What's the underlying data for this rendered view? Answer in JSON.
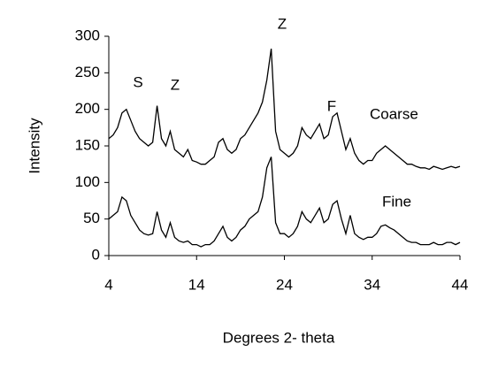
{
  "chart_data": {
    "type": "line",
    "xlabel": "Degrees 2- theta",
    "ylabel": "Intensity",
    "annotations": [
      "S",
      "Z",
      "Z",
      "F"
    ],
    "x": [
      4,
      4.5,
      5,
      5.5,
      6,
      6.5,
      7,
      7.5,
      8,
      8.5,
      9,
      9.5,
      10,
      10.5,
      11,
      11.5,
      12,
      12.5,
      13,
      13.5,
      14,
      14.5,
      15,
      15.5,
      16,
      16.5,
      17,
      17.5,
      18,
      18.5,
      19,
      19.5,
      20,
      20.5,
      21,
      21.5,
      22,
      22.5,
      23,
      23.5,
      24,
      24.5,
      25,
      25.5,
      26,
      26.5,
      27,
      27.5,
      28,
      28.5,
      29,
      29.5,
      30,
      30.5,
      31,
      31.5,
      32,
      32.5,
      33,
      33.5,
      34,
      34.5,
      35,
      35.5,
      36,
      36.5,
      37,
      37.5,
      38,
      38.5,
      39,
      39.5,
      40,
      40.5,
      41,
      41.5,
      42,
      42.5,
      43,
      43.5,
      44
    ],
    "series": [
      {
        "name": "Coarse",
        "color": "#000000",
        "values": [
          160,
          165,
          175,
          195,
          200,
          185,
          170,
          160,
          155,
          150,
          155,
          205,
          160,
          150,
          170,
          145,
          140,
          135,
          145,
          130,
          128,
          125,
          125,
          130,
          135,
          155,
          160,
          145,
          140,
          145,
          160,
          165,
          175,
          185,
          195,
          210,
          240,
          283,
          170,
          145,
          140,
          135,
          140,
          150,
          175,
          165,
          160,
          170,
          180,
          160,
          165,
          190,
          195,
          170,
          145,
          160,
          140,
          130,
          125,
          130,
          130,
          140,
          145,
          150,
          145,
          140,
          135,
          130,
          125,
          125,
          122,
          120,
          120,
          118,
          122,
          120,
          118,
          120,
          122,
          120,
          122
        ]
      },
      {
        "name": "Fine",
        "color": "#000000",
        "values": [
          50,
          55,
          60,
          80,
          75,
          55,
          45,
          35,
          30,
          28,
          30,
          60,
          35,
          25,
          45,
          25,
          20,
          18,
          20,
          15,
          15,
          12,
          15,
          15,
          20,
          30,
          40,
          25,
          20,
          25,
          35,
          40,
          50,
          55,
          60,
          80,
          120,
          135,
          45,
          30,
          30,
          25,
          30,
          40,
          60,
          50,
          45,
          55,
          65,
          45,
          50,
          70,
          75,
          50,
          30,
          55,
          30,
          25,
          22,
          25,
          25,
          30,
          40,
          42,
          38,
          35,
          30,
          25,
          20,
          18,
          18,
          15,
          15,
          15,
          18,
          15,
          15,
          18,
          18,
          15,
          18
        ]
      }
    ],
    "xlim": [
      4,
      44
    ],
    "xticks": [
      4,
      14,
      24,
      34,
      44
    ],
    "ylim": [
      0,
      300
    ],
    "yticks": [
      0,
      50,
      100,
      150,
      200,
      250,
      300
    ]
  }
}
